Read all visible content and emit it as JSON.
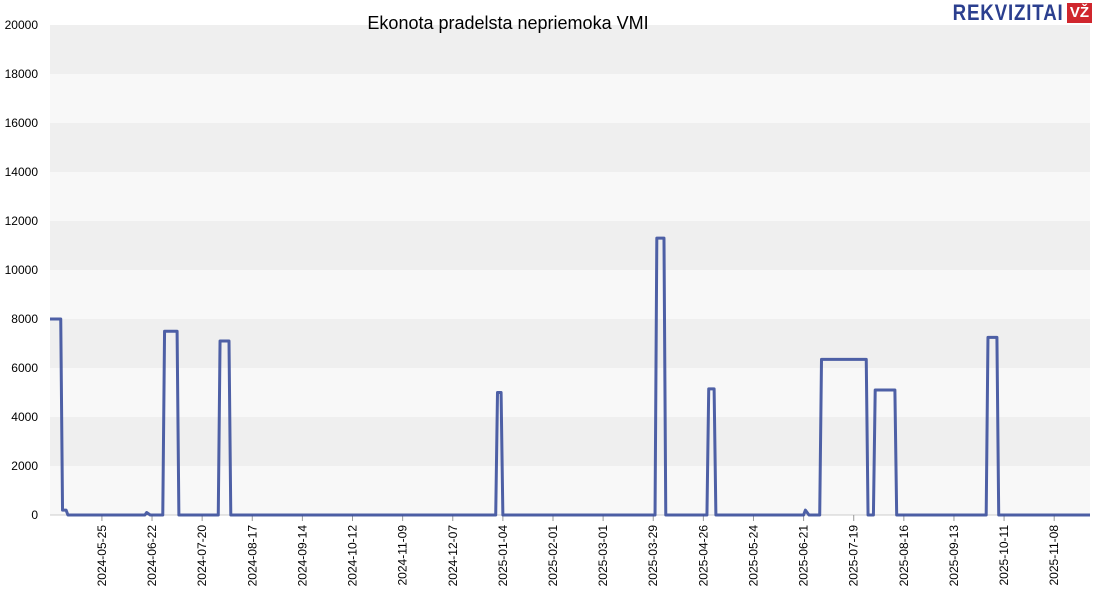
{
  "logo": {
    "text": "REKVIZITAI",
    "badge": "VŽ"
  },
  "colors": {
    "line": "#3b4f9c",
    "band_dark": "#efefef",
    "band_light": "#f8f8f8"
  },
  "chart_data": {
    "type": "line",
    "title": "Ekonota pradelsta nepriemoka VMI",
    "xlabel": "",
    "ylabel": "",
    "ylim": [
      0,
      20000
    ],
    "y_ticks": [
      0,
      2000,
      4000,
      6000,
      8000,
      10000,
      12000,
      14000,
      16000,
      18000,
      20000
    ],
    "x_range": [
      "2024-04-26",
      "2025-11-28"
    ],
    "x_ticks": [
      "2024-05-25",
      "2024-06-22",
      "2024-07-20",
      "2024-08-17",
      "2024-09-14",
      "2024-10-12",
      "2024-11-09",
      "2024-12-07",
      "2025-01-04",
      "2025-02-01",
      "2025-03-01",
      "2025-03-29",
      "2025-04-26",
      "2025-05-24",
      "2025-06-21",
      "2025-07-19",
      "2025-08-16",
      "2025-09-13",
      "2025-10-11",
      "2025-11-08"
    ],
    "grid": "horizontal bands",
    "legend": "none",
    "series": [
      {
        "points": [
          [
            "2024-04-26",
            8000
          ],
          [
            "2024-05-02",
            8000
          ],
          [
            "2024-05-03",
            200
          ],
          [
            "2024-05-05",
            200
          ],
          [
            "2024-05-06",
            0
          ],
          [
            "2024-06-18",
            0
          ],
          [
            "2024-06-19",
            100
          ],
          [
            "2024-06-21",
            0
          ],
          [
            "2024-06-28",
            0
          ],
          [
            "2024-06-29",
            7500
          ],
          [
            "2024-07-06",
            7500
          ],
          [
            "2024-07-07",
            0
          ],
          [
            "2024-07-29",
            0
          ],
          [
            "2024-07-30",
            7100
          ],
          [
            "2024-08-04",
            7100
          ],
          [
            "2024-08-05",
            0
          ],
          [
            "2024-12-31",
            0
          ],
          [
            "2025-01-01",
            5000
          ],
          [
            "2025-01-03",
            5000
          ],
          [
            "2025-01-04",
            0
          ],
          [
            "2025-03-30",
            0
          ],
          [
            "2025-03-31",
            11300
          ],
          [
            "2025-04-04",
            11300
          ],
          [
            "2025-04-05",
            0
          ],
          [
            "2025-04-28",
            0
          ],
          [
            "2025-04-29",
            5150
          ],
          [
            "2025-05-02",
            5150
          ],
          [
            "2025-05-03",
            0
          ],
          [
            "2025-06-21",
            0
          ],
          [
            "2025-06-22",
            200
          ],
          [
            "2025-06-24",
            0
          ],
          [
            "2025-06-30",
            0
          ],
          [
            "2025-07-01",
            6350
          ],
          [
            "2025-07-26",
            6350
          ],
          [
            "2025-07-27",
            0
          ],
          [
            "2025-07-30",
            0
          ],
          [
            "2025-07-31",
            5100
          ],
          [
            "2025-08-11",
            5100
          ],
          [
            "2025-08-12",
            0
          ],
          [
            "2025-10-01",
            0
          ],
          [
            "2025-10-02",
            7250
          ],
          [
            "2025-10-07",
            7250
          ],
          [
            "2025-10-08",
            0
          ],
          [
            "2025-11-28",
            0
          ]
        ]
      }
    ]
  }
}
